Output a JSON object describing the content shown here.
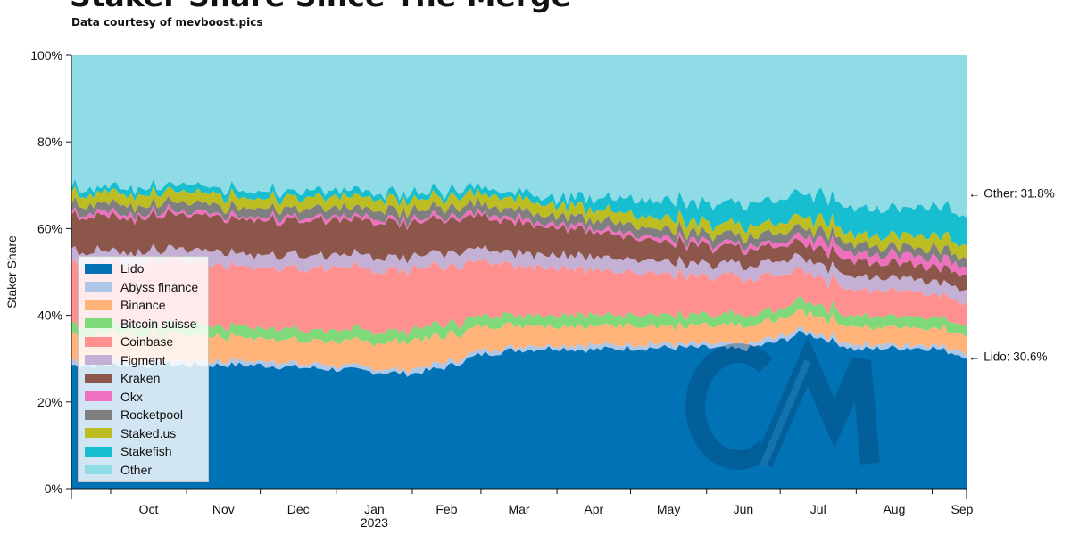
{
  "title": "Staker Share Since The Merge",
  "subtitle": "Data courtesy of mevboost.pics",
  "chart_data": {
    "type": "area",
    "stacked": true,
    "normalized": true,
    "ylabel": "Staker Share",
    "ylim": [
      0,
      100
    ],
    "y_ticks": [
      "0%",
      "20%",
      "40%",
      "60%",
      "80%",
      "100%"
    ],
    "x_ticks": [
      "Oct",
      "Nov",
      "Dec",
      "Jan",
      "Feb",
      "Mar",
      "Apr",
      "May",
      "Jun",
      "Jul",
      "Aug",
      "Sep"
    ],
    "x_year_label": "2023",
    "x": [
      "2022-09-15",
      "2022-10-01",
      "2022-10-15",
      "2022-11-01",
      "2022-11-15",
      "2022-12-01",
      "2022-12-15",
      "2023-01-01",
      "2023-01-15",
      "2023-02-01",
      "2023-02-15",
      "2023-03-01",
      "2023-03-15",
      "2023-04-01",
      "2023-04-15",
      "2023-05-01",
      "2023-05-15",
      "2023-06-01",
      "2023-06-15",
      "2023-07-01",
      "2023-07-10",
      "2023-07-20",
      "2023-08-01",
      "2023-08-15",
      "2023-09-01",
      "2023-09-15"
    ],
    "series": [
      {
        "name": "Lido",
        "color": "#0072b5",
        "values": [
          28.5,
          28.5,
          28.5,
          28.5,
          28.5,
          28.5,
          28.0,
          27.5,
          27.0,
          26.5,
          28.0,
          31.0,
          32.0,
          32.5,
          32.0,
          32.5,
          32.5,
          32.5,
          32.0,
          34.0,
          36.0,
          34.5,
          32.0,
          32.5,
          32.5,
          30.6
        ]
      },
      {
        "name": "Abyss finance",
        "color": "#aec7e8",
        "values": [
          1.0,
          1.0,
          1.0,
          1.0,
          1.0,
          1.0,
          1.0,
          1.0,
          1.0,
          1.0,
          1.0,
          1.0,
          1.0,
          1.0,
          1.0,
          1.0,
          1.0,
          1.0,
          1.0,
          1.0,
          1.0,
          1.0,
          1.0,
          1.0,
          1.0,
          1.0
        ]
      },
      {
        "name": "Binance",
        "color": "#ffb379",
        "values": [
          6.0,
          6.0,
          6.0,
          6.0,
          5.5,
          5.5,
          5.5,
          5.5,
          6.0,
          6.5,
          6.0,
          5.5,
          5.0,
          4.5,
          4.5,
          4.5,
          4.0,
          4.0,
          4.0,
          4.0,
          4.0,
          4.0,
          4.0,
          4.0,
          4.0,
          4.0
        ]
      },
      {
        "name": "Bitcoin suisse",
        "color": "#7fd87a",
        "values": [
          2.5,
          2.5,
          2.5,
          2.5,
          2.5,
          2.5,
          2.5,
          2.5,
          2.5,
          2.5,
          2.5,
          2.5,
          2.5,
          2.5,
          2.5,
          2.5,
          2.5,
          2.5,
          2.5,
          2.5,
          2.5,
          2.5,
          2.5,
          2.5,
          2.5,
          2.5
        ]
      },
      {
        "name": "Coinbase",
        "color": "#ff9090",
        "values": [
          14.0,
          14.0,
          14.0,
          14.0,
          14.0,
          14.0,
          14.0,
          14.5,
          14.0,
          14.0,
          13.5,
          12.5,
          11.5,
          11.0,
          10.5,
          10.0,
          9.5,
          9.0,
          8.5,
          8.0,
          7.0,
          6.5,
          6.0,
          6.0,
          5.5,
          5.0
        ]
      },
      {
        "name": "Figment",
        "color": "#c5b0d5",
        "values": [
          3.0,
          3.0,
          3.0,
          3.0,
          3.0,
          3.0,
          3.0,
          3.0,
          3.0,
          3.0,
          3.0,
          3.0,
          3.0,
          3.0,
          3.0,
          3.0,
          3.0,
          3.0,
          3.0,
          3.0,
          3.0,
          3.0,
          3.0,
          3.0,
          3.0,
          3.0
        ]
      },
      {
        "name": "Kraken",
        "color": "#8c564b",
        "values": [
          8.0,
          8.0,
          8.0,
          8.0,
          8.0,
          8.0,
          8.0,
          8.0,
          8.0,
          8.0,
          7.5,
          7.5,
          7.0,
          6.5,
          6.0,
          5.0,
          4.5,
          4.0,
          4.0,
          3.5,
          3.5,
          3.5,
          3.5,
          3.5,
          3.5,
          3.5
        ]
      },
      {
        "name": "Okx",
        "color": "#f070c0",
        "values": [
          0.8,
          0.8,
          0.8,
          0.8,
          0.8,
          0.8,
          0.8,
          0.8,
          0.8,
          0.8,
          0.8,
          0.8,
          0.8,
          0.8,
          0.8,
          0.8,
          0.8,
          0.8,
          0.8,
          1.0,
          1.5,
          2.0,
          2.0,
          2.0,
          2.0,
          2.0
        ]
      },
      {
        "name": "Rocketpool",
        "color": "#7f7f7f",
        "values": [
          2.0,
          2.0,
          2.0,
          2.0,
          2.0,
          2.0,
          2.0,
          2.0,
          2.0,
          2.0,
          2.0,
          2.0,
          2.0,
          2.0,
          2.0,
          2.0,
          2.0,
          2.0,
          2.0,
          2.0,
          2.0,
          2.0,
          2.0,
          2.0,
          2.0,
          2.0
        ]
      },
      {
        "name": "Staked.us",
        "color": "#bcbd22",
        "values": [
          2.5,
          2.5,
          2.5,
          2.5,
          2.5,
          2.5,
          2.5,
          2.5,
          2.5,
          2.5,
          2.5,
          2.5,
          2.5,
          2.5,
          2.5,
          2.5,
          2.5,
          2.5,
          2.5,
          2.5,
          2.5,
          2.5,
          2.5,
          2.5,
          3.0,
          3.0
        ]
      },
      {
        "name": "Stakefish",
        "color": "#17becf",
        "values": [
          1.5,
          1.5,
          1.5,
          1.5,
          1.5,
          1.5,
          1.5,
          1.5,
          1.5,
          1.5,
          1.5,
          1.5,
          1.5,
          1.5,
          2.5,
          3.5,
          4.0,
          4.5,
          5.0,
          5.5,
          5.5,
          5.5,
          6.0,
          6.0,
          6.5,
          6.8
        ]
      },
      {
        "name": "Other",
        "color": "#8fdbe6",
        "values": [
          30.2,
          30.2,
          30.2,
          30.2,
          30.7,
          30.7,
          31.2,
          31.2,
          31.7,
          31.7,
          31.7,
          30.7,
          31.2,
          31.2,
          31.7,
          32.2,
          32.7,
          33.2,
          33.7,
          33.5,
          32.0,
          32.5,
          33.0,
          32.5,
          32.0,
          31.8
        ]
      }
    ],
    "annotations": [
      {
        "label": "Other: 31.8%",
        "series": "Other"
      },
      {
        "label": "Lido: 30.6%",
        "series": "Lido"
      }
    ],
    "watermark": "CM"
  }
}
